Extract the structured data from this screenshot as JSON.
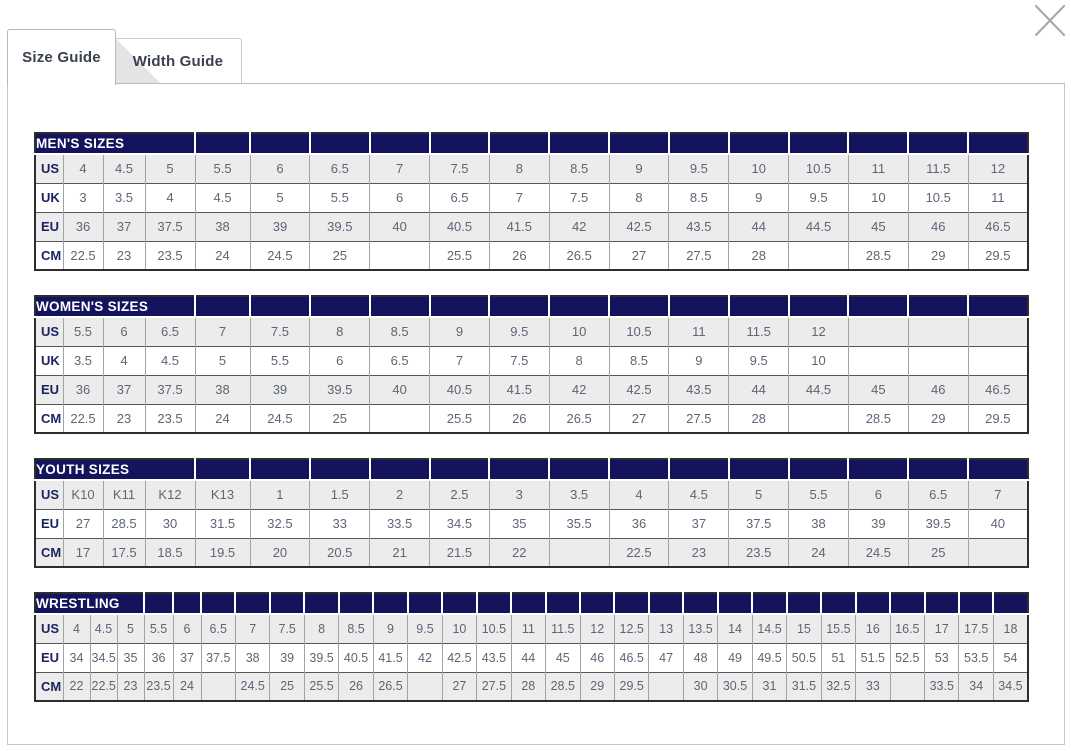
{
  "modal": {
    "close_icon": "close-x",
    "tabs": [
      {
        "label": "Size Guide",
        "active": true
      },
      {
        "label": "Width Guide",
        "active": false
      }
    ]
  },
  "colors": {
    "header_navy": "#14145e",
    "row_alt_gray": "#ececec",
    "cell_text": "#5d6676",
    "label_navy": "#1c2460",
    "close_icon_gray": "#a9a9a9"
  },
  "tables": [
    {
      "title": "MEN'S SIZES",
      "title_colspan": 4,
      "rows": [
        {
          "label": "US",
          "cells": [
            "4",
            "4.5",
            "5",
            "5.5",
            "6",
            "6.5",
            "7",
            "7.5",
            "8",
            "8.5",
            "9",
            "9.5",
            "10",
            "10.5",
            "11",
            "11.5",
            "12"
          ]
        },
        {
          "label": "UK",
          "cells": [
            "3",
            "3.5",
            "4",
            "4.5",
            "5",
            "5.5",
            "6",
            "6.5",
            "7",
            "7.5",
            "8",
            "8.5",
            "9",
            "9.5",
            "10",
            "10.5",
            "11"
          ]
        },
        {
          "label": "EU",
          "cells": [
            "36",
            "37",
            "37.5",
            "38",
            "39",
            "39.5",
            "40",
            "40.5",
            "41.5",
            "42",
            "42.5",
            "43.5",
            "44",
            "44.5",
            "45",
            "46",
            "46.5"
          ]
        },
        {
          "label": "CM",
          "cells": [
            "22.5",
            "23",
            "23.5",
            "24",
            "24.5",
            "25",
            "",
            "25.5",
            "26",
            "26.5",
            "27",
            "27.5",
            "28",
            "",
            "28.5",
            "29",
            "29.5"
          ]
        }
      ]
    },
    {
      "title": "WOMEN'S SIZES",
      "title_colspan": 4,
      "rows": [
        {
          "label": "US",
          "cells": [
            "5.5",
            "6",
            "6.5",
            "7",
            "7.5",
            "8",
            "8.5",
            "9",
            "9.5",
            "10",
            "10.5",
            "11",
            "11.5",
            "12",
            "",
            "",
            ""
          ]
        },
        {
          "label": "UK",
          "cells": [
            "3.5",
            "4",
            "4.5",
            "5",
            "5.5",
            "6",
            "6.5",
            "7",
            "7.5",
            "8",
            "8.5",
            "9",
            "9.5",
            "10",
            "",
            "",
            ""
          ]
        },
        {
          "label": "EU",
          "cells": [
            "36",
            "37",
            "37.5",
            "38",
            "39",
            "39.5",
            "40",
            "40.5",
            "41.5",
            "42",
            "42.5",
            "43.5",
            "44",
            "44.5",
            "45",
            "46",
            "46.5"
          ]
        },
        {
          "label": "CM",
          "cells": [
            "22.5",
            "23",
            "23.5",
            "24",
            "24.5",
            "25",
            "",
            "25.5",
            "26",
            "26.5",
            "27",
            "27.5",
            "28",
            "",
            "28.5",
            "29",
            "29.5"
          ]
        }
      ]
    },
    {
      "title": "YOUTH SIZES",
      "title_colspan": 4,
      "rows": [
        {
          "label": "US",
          "cells": [
            "K10",
            "K11",
            "K12",
            "K13",
            "1",
            "1.5",
            "2",
            "2.5",
            "3",
            "3.5",
            "4",
            "4.5",
            "5",
            "5.5",
            "6",
            "6.5",
            "7"
          ]
        },
        {
          "label": "EU",
          "cells": [
            "27",
            "28.5",
            "30",
            "31.5",
            "32.5",
            "33",
            "33.5",
            "34.5",
            "35",
            "35.5",
            "36",
            "37",
            "37.5",
            "38",
            "39",
            "39.5",
            "40"
          ]
        },
        {
          "label": "CM",
          "cells": [
            "17",
            "17.5",
            "18.5",
            "19.5",
            "20",
            "20.5",
            "21",
            "21.5",
            "22",
            "",
            "22.5",
            "23",
            "23.5",
            "24",
            "24.5",
            "25",
            ""
          ]
        }
      ]
    },
    {
      "title": "WRESTLING",
      "title_colspan": 4,
      "rows": [
        {
          "label": "US",
          "cells": [
            "4",
            "4.5",
            "5",
            "5.5",
            "6",
            "6.5",
            "7",
            "7.5",
            "8",
            "8.5",
            "9",
            "9.5",
            "10",
            "10.5",
            "11",
            "11.5",
            "12",
            "12.5",
            "13",
            "13.5",
            "14",
            "14.5",
            "15",
            "15.5",
            "16",
            "16.5",
            "17",
            "17.5",
            "18"
          ]
        },
        {
          "label": "EU",
          "cells": [
            "34",
            "34.5",
            "35",
            "36",
            "37",
            "37.5",
            "38",
            "39",
            "39.5",
            "40.5",
            "41.5",
            "42",
            "42.5",
            "43.5",
            "44",
            "45",
            "46",
            "46.5",
            "47",
            "48",
            "49",
            "49.5",
            "50.5",
            "51",
            "51.5",
            "52.5",
            "53",
            "53.5",
            "54"
          ]
        },
        {
          "label": "CM",
          "cells": [
            "22",
            "22.5",
            "23",
            "23.5",
            "24",
            "",
            "24.5",
            "25",
            "25.5",
            "26",
            "26.5",
            "",
            "27",
            "27.5",
            "28",
            "28.5",
            "29",
            "29.5",
            "",
            "30",
            "30.5",
            "31",
            "31.5",
            "32.5",
            "33",
            "",
            "33.5",
            "34",
            "34.5"
          ]
        }
      ]
    }
  ]
}
